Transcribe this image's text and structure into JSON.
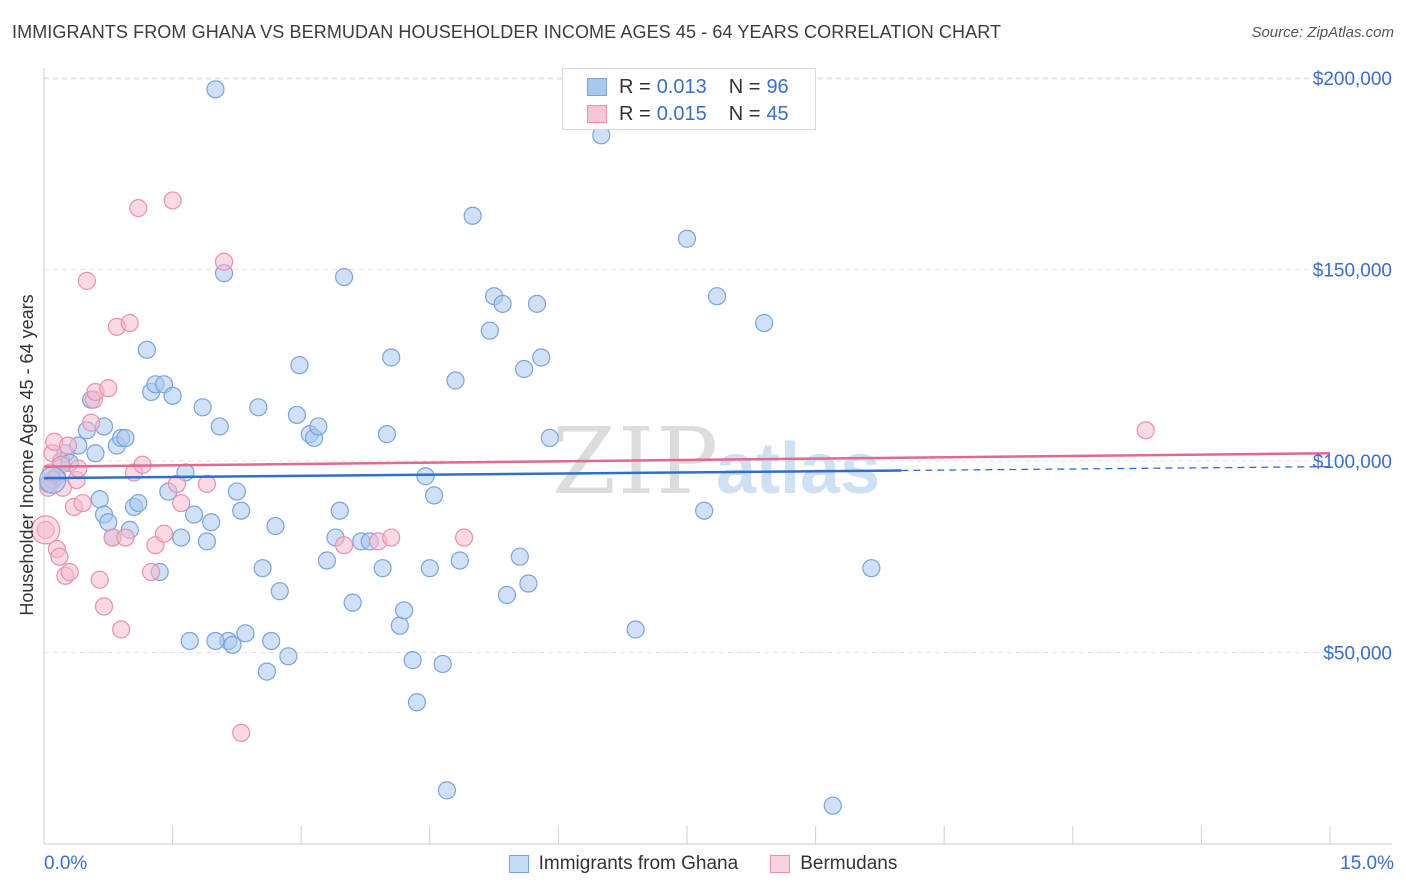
{
  "title": "IMMIGRANTS FROM GHANA VS BERMUDAN HOUSEHOLDER INCOME AGES 45 - 64 YEARS CORRELATION CHART",
  "source": "Source: ZipAtlas.com",
  "watermark": {
    "zip": "ZIP",
    "atlas": "atlas"
  },
  "legend_top": [
    {
      "r_label": "R =",
      "r_value": "0.013",
      "n_label": "N =",
      "n_value": "96"
    },
    {
      "r_label": "R =",
      "r_value": "0.015",
      "n_label": "N =",
      "n_value": "45"
    }
  ],
  "colors": {
    "blue_fill": "#a9c8f0",
    "blue_stroke": "#7aa4d8",
    "blue_line": "#2f6fcc",
    "pink_fill": "#f6b9cd",
    "pink_stroke": "#e890ae",
    "pink_line": "#e0698f",
    "tick_text": "#3a6fc4",
    "grid": "#e3e3e3"
  },
  "chart_data": {
    "type": "scatter",
    "title": "IMMIGRANTS FROM GHANA VS BERMUDAN HOUSEHOLDER INCOME AGES 45 - 64 YEARS CORRELATION CHART",
    "xlabel": "",
    "ylabel": "Householder Income Ages 45 - 64 years",
    "xlim": [
      0,
      15
    ],
    "ylim": [
      0,
      210000
    ],
    "x_tick_labels": [
      {
        "value": 0,
        "label": "0.0%"
      },
      {
        "value": 15,
        "label": "15.0%"
      }
    ],
    "y_ticks": [
      {
        "value": 50000,
        "label": "$50,000"
      },
      {
        "value": 100000,
        "label": "$100,000"
      },
      {
        "value": 150000,
        "label": "$150,000"
      },
      {
        "value": 200000,
        "label": "$200,000"
      }
    ],
    "grid": true,
    "legend_position": "top-center",
    "series": [
      {
        "name": "Immigrants from Ghana",
        "color": "#a9c8f0",
        "trend": {
          "x_start": 0,
          "y_start": 95500,
          "x_solid_end": 10.0,
          "y_solid_end": 97500,
          "x_end": 15.0,
          "y_end": 98500
        },
        "points": [
          [
            0.05,
            94000
          ],
          [
            0.1,
            95000
          ],
          [
            0.15,
            96000
          ],
          [
            0.2,
            100000
          ],
          [
            0.25,
            102000
          ],
          [
            0.3,
            99500
          ],
          [
            0.4,
            104000
          ],
          [
            0.5,
            108000
          ],
          [
            0.55,
            116000
          ],
          [
            0.6,
            102000
          ],
          [
            0.7,
            109000
          ],
          [
            0.65,
            90000
          ],
          [
            0.7,
            86000
          ],
          [
            0.75,
            84000
          ],
          [
            0.8,
            80000
          ],
          [
            0.85,
            104000
          ],
          [
            0.9,
            106000
          ],
          [
            0.95,
            106000
          ],
          [
            1.0,
            82000
          ],
          [
            1.05,
            88000
          ],
          [
            1.1,
            89000
          ],
          [
            1.2,
            129000
          ],
          [
            1.25,
            118000
          ],
          [
            1.3,
            120000
          ],
          [
            1.35,
            71000
          ],
          [
            1.4,
            120000
          ],
          [
            1.45,
            92000
          ],
          [
            1.5,
            117000
          ],
          [
            1.6,
            80000
          ],
          [
            1.65,
            97000
          ],
          [
            1.75,
            86000
          ],
          [
            1.85,
            114000
          ],
          [
            1.9,
            79000
          ],
          [
            1.95,
            84000
          ],
          [
            2.05,
            109000
          ],
          [
            2.1,
            149000
          ],
          [
            2.15,
            53000
          ],
          [
            2.2,
            52000
          ],
          [
            2.25,
            92000
          ],
          [
            2.3,
            87000
          ],
          [
            2.35,
            55000
          ],
          [
            2.0,
            53000
          ],
          [
            1.7,
            53000
          ],
          [
            2.5,
            114000
          ],
          [
            2.55,
            72000
          ],
          [
            2.6,
            45000
          ],
          [
            2.65,
            53000
          ],
          [
            2.7,
            83000
          ],
          [
            2.75,
            66000
          ],
          [
            2.85,
            49000
          ],
          [
            2.95,
            112000
          ],
          [
            2.98,
            125000
          ],
          [
            3.1,
            107000
          ],
          [
            3.15,
            106000
          ],
          [
            3.2,
            109000
          ],
          [
            3.3,
            74000
          ],
          [
            3.4,
            80000
          ],
          [
            3.45,
            87000
          ],
          [
            3.5,
            148000
          ],
          [
            3.6,
            63000
          ],
          [
            3.7,
            79000
          ],
          [
            3.8,
            79000
          ],
          [
            3.95,
            72000
          ],
          [
            4.0,
            107000
          ],
          [
            4.05,
            127000
          ],
          [
            4.15,
            57000
          ],
          [
            4.2,
            61000
          ],
          [
            4.3,
            48000
          ],
          [
            4.35,
            37000
          ],
          [
            4.45,
            96000
          ],
          [
            4.5,
            72000
          ],
          [
            4.55,
            91000
          ],
          [
            4.65,
            47000
          ],
          [
            4.7,
            14000
          ],
          [
            4.8,
            121000
          ],
          [
            4.85,
            74000
          ],
          [
            5.0,
            164000
          ],
          [
            5.2,
            134000
          ],
          [
            5.25,
            143000
          ],
          [
            5.35,
            141000
          ],
          [
            5.4,
            65000
          ],
          [
            5.6,
            124000
          ],
          [
            5.65,
            68000
          ],
          [
            5.55,
            75000
          ],
          [
            5.75,
            141000
          ],
          [
            5.8,
            127000
          ],
          [
            5.9,
            106000
          ],
          [
            6.5,
            185000
          ],
          [
            6.9,
            56000
          ],
          [
            7.5,
            158000
          ],
          [
            7.7,
            87000
          ],
          [
            7.85,
            143000
          ],
          [
            8.4,
            136000
          ],
          [
            9.2,
            10000
          ],
          [
            9.65,
            72000
          ],
          [
            2.0,
            197000
          ]
        ]
      },
      {
        "name": "Bermudans",
        "color": "#f6b9cd",
        "trend": {
          "x_start": 0,
          "y_start": 98500,
          "x_end": 15.0,
          "y_end": 102000
        },
        "points": [
          [
            0.02,
            82000
          ],
          [
            0.05,
            93000
          ],
          [
            0.08,
            97000
          ],
          [
            0.1,
            102000
          ],
          [
            0.12,
            105000
          ],
          [
            0.15,
            77000
          ],
          [
            0.18,
            75000
          ],
          [
            0.2,
            99000
          ],
          [
            0.22,
            93000
          ],
          [
            0.25,
            70000
          ],
          [
            0.28,
            104000
          ],
          [
            0.3,
            71000
          ],
          [
            0.35,
            88000
          ],
          [
            0.38,
            95000
          ],
          [
            0.4,
            98000
          ],
          [
            0.45,
            89000
          ],
          [
            0.5,
            147000
          ],
          [
            0.55,
            110000
          ],
          [
            0.58,
            116000
          ],
          [
            0.6,
            118000
          ],
          [
            0.65,
            69000
          ],
          [
            0.7,
            62000
          ],
          [
            0.75,
            119000
          ],
          [
            0.8,
            80000
          ],
          [
            0.85,
            135000
          ],
          [
            0.9,
            56000
          ],
          [
            0.95,
            80000
          ],
          [
            1.0,
            136000
          ],
          [
            1.05,
            97000
          ],
          [
            1.1,
            166000
          ],
          [
            1.15,
            99000
          ],
          [
            1.25,
            71000
          ],
          [
            1.3,
            78000
          ],
          [
            1.4,
            81000
          ],
          [
            1.5,
            168000
          ],
          [
            1.55,
            94000
          ],
          [
            1.6,
            89000
          ],
          [
            2.1,
            152000
          ],
          [
            2.3,
            29000
          ],
          [
            3.5,
            78000
          ],
          [
            3.9,
            79000
          ],
          [
            4.05,
            80000
          ],
          [
            4.9,
            80000
          ],
          [
            1.9,
            94000
          ],
          [
            12.85,
            108000
          ]
        ]
      }
    ]
  },
  "legend_bottom": [
    "Immigrants from Ghana",
    "Bermudans"
  ]
}
